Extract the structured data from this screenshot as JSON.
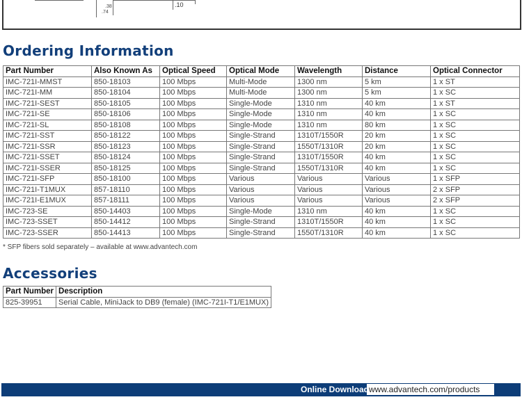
{
  "drawing": {
    "dims": [
      ".38",
      ".74",
      ".10"
    ]
  },
  "ordering": {
    "title": "Ordering Information",
    "headers": [
      "Part Number",
      "Also Known As",
      "Optical Speed",
      "Optical Mode",
      "Wavelength",
      "Distance",
      "Optical Connector"
    ],
    "rows": [
      [
        "IMC-721I-MMST",
        "850-18103",
        "100 Mbps",
        "Multi-Mode",
        "1300 nm",
        "5 km",
        "1 x ST"
      ],
      [
        "IMC-721I-MM",
        "850-18104",
        "100 Mbps",
        "Multi-Mode",
        "1300 nm",
        "5 km",
        "1 x SC"
      ],
      [
        "IMC-721I-SEST",
        "850-18105",
        "100 Mbps",
        "Single-Mode",
        "1310 nm",
        "40 km",
        "1 x ST"
      ],
      [
        "IMC-721I-SE",
        "850-18106",
        "100 Mbps",
        "Single-Mode",
        "1310 nm",
        "40 km",
        "1 x SC"
      ],
      [
        "IMC-721I-SL",
        "850-18108",
        "100 Mbps",
        "Single-Mode",
        "1310 nm",
        "80 km",
        "1 x SC"
      ],
      [
        "IMC-721I-SST",
        "850-18122",
        "100 Mbps",
        "Single-Strand",
        "1310T/1550R",
        "20 km",
        "1 x SC"
      ],
      [
        "IMC-721I-SSR",
        "850-18123",
        "100 Mbps",
        "Single-Strand",
        "1550T/1310R",
        "20 km",
        "1 x SC"
      ],
      [
        "IMC-721I-SSET",
        "850-18124",
        "100 Mbps",
        "Single-Strand",
        "1310T/1550R",
        "40 km",
        "1 x SC"
      ],
      [
        "IMC-721I-SSER",
        "850-18125",
        "100 Mbps",
        "Single-Strand",
        "1550T/1310R",
        "40 km",
        "1 x SC"
      ],
      [
        "IMC-721I-SFP",
        "850-18100",
        "100 Mbps",
        "Various",
        "Various",
        "Various",
        "1 x SFP"
      ],
      [
        "IMC-721I-T1MUX",
        "857-18110",
        "100 Mbps",
        "Various",
        "Various",
        "Various",
        "2 x SFP"
      ],
      [
        "IMC-721I-E1MUX",
        "857-18111",
        "100 Mbps",
        "Various",
        "Various",
        "Various",
        "2 x SFP"
      ],
      [
        "IMC-723-SE",
        "850-14403",
        "100 Mbps",
        "Single-Mode",
        "1310 nm",
        "40 km",
        "1 x SC"
      ],
      [
        "IMC-723-SSET",
        "850-14412",
        "100 Mbps",
        "Single-Strand",
        "1310T/1550R",
        "40 km",
        "1 x SC"
      ],
      [
        "IMC-723-SSER",
        "850-14413",
        "100 Mbps",
        "Single-Strand",
        "1550T/1310R",
        "40 km",
        "1 x SC"
      ]
    ],
    "note": "* SFP fibers sold separately – available at www.advantech.com"
  },
  "accessories": {
    "title": "Accessories",
    "headers": [
      "Part Number",
      "Description"
    ],
    "rows": [
      [
        "825-39951",
        "Serial Cable, MiniJack to DB9 (female) (IMC-721I-T1/E1MUX)"
      ]
    ]
  },
  "footer": {
    "label": "Online Download",
    "url": "www.advantech.com/products",
    "color": "#0d3d78"
  }
}
